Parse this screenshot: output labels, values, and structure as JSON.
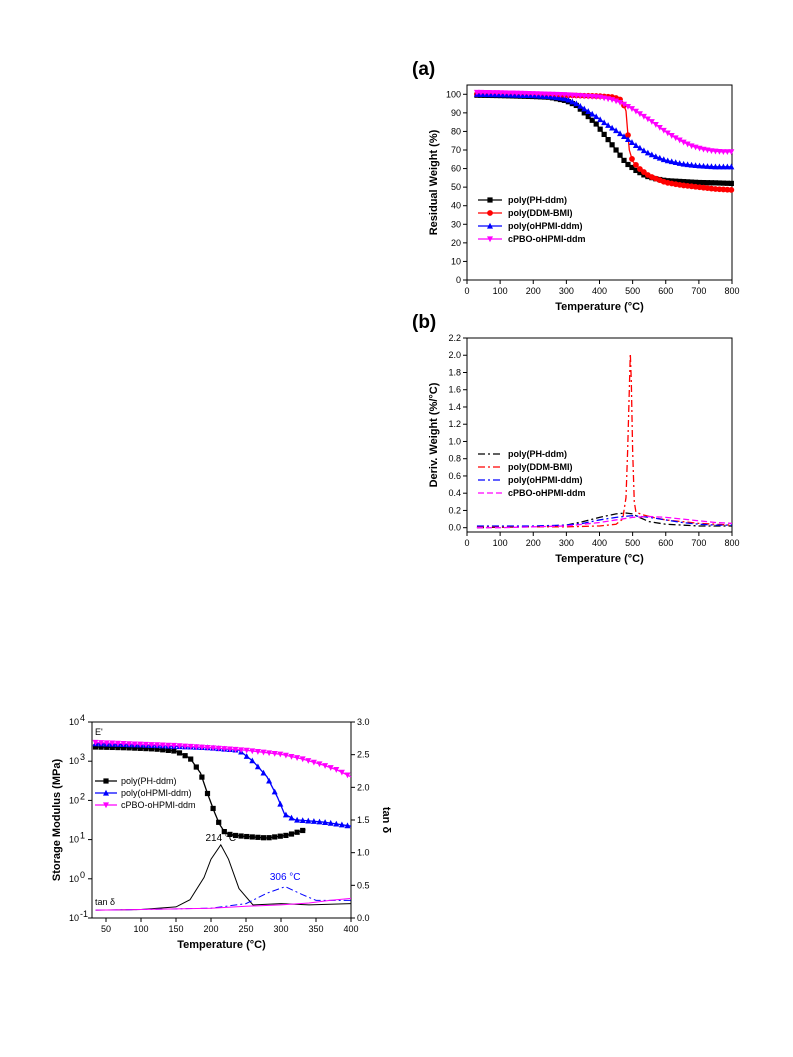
{
  "chart_data": [
    {
      "panel_label": "(a)",
      "type": "line",
      "xlabel": "Temperature (°C)",
      "ylabel": "Residual Weight (%)",
      "xlim": [
        0,
        800
      ],
      "ylim": [
        0,
        105
      ],
      "xticks": [
        "0",
        "100",
        "200",
        "300",
        "400",
        "500",
        "600",
        "700",
        "800"
      ],
      "yticks": [
        "0",
        "10",
        "20",
        "30",
        "40",
        "50",
        "60",
        "70",
        "80",
        "90",
        "100"
      ],
      "legend_position": "center-left",
      "series": [
        {
          "name": "poly(PH-ddm)",
          "color": "#000000",
          "marker": "square",
          "x": [
            30,
            100,
            200,
            250,
            300,
            330,
            360,
            390,
            420,
            450,
            480,
            510,
            540,
            570,
            600,
            650,
            700,
            750,
            800
          ],
          "y": [
            99.5,
            99.3,
            98.8,
            98.4,
            96.5,
            94,
            89,
            84,
            77,
            70,
            63,
            59,
            56,
            54.5,
            53.5,
            53,
            52.5,
            52.3,
            52
          ]
        },
        {
          "name": "poly(DDM-BMI)",
          "color": "#ff0000",
          "marker": "circle",
          "x": [
            30,
            100,
            200,
            300,
            400,
            440,
            460,
            470,
            480,
            485,
            490,
            500,
            520,
            550,
            600,
            650,
            700,
            750,
            800
          ],
          "y": [
            100,
            100,
            99.8,
            99.5,
            99,
            98.5,
            97.5,
            96,
            91,
            80,
            70,
            64,
            60,
            56,
            52.5,
            51,
            50,
            49,
            48.5
          ]
        },
        {
          "name": "poly(oHPMI-ddm)",
          "color": "#0000ff",
          "marker": "triangle-up",
          "x": [
            30,
            100,
            200,
            250,
            300,
            330,
            360,
            390,
            420,
            450,
            480,
            510,
            540,
            570,
            600,
            650,
            700,
            750,
            800
          ],
          "y": [
            100,
            99.8,
            99.3,
            98.8,
            97.5,
            95,
            91.5,
            88,
            84,
            80.5,
            76.5,
            72.5,
            69,
            66.5,
            64.5,
            62.5,
            61.5,
            61,
            61
          ]
        },
        {
          "name": "cPBO-oHPMI-ddm",
          "color": "#ff00ff",
          "marker": "triangle-down",
          "x": [
            30,
            100,
            200,
            300,
            400,
            440,
            470,
            500,
            530,
            560,
            590,
            620,
            650,
            680,
            710,
            740,
            770,
            800
          ],
          "y": [
            101,
            100.8,
            100.3,
            99.7,
            98.5,
            97,
            95,
            92,
            88.5,
            85,
            81,
            77.5,
            74.5,
            72,
            70.5,
            69.5,
            69,
            69
          ]
        }
      ]
    },
    {
      "panel_label": "(b)",
      "type": "line",
      "xlabel": "Temperature (°C)",
      "ylabel": "Deriv. Weight (%/°C)",
      "xlim": [
        0,
        800
      ],
      "ylim": [
        -0.05,
        2.2
      ],
      "xticks": [
        "0",
        "100",
        "200",
        "300",
        "400",
        "500",
        "600",
        "700",
        "800"
      ],
      "yticks": [
        "0.0",
        "0.2",
        "0.4",
        "0.6",
        "0.8",
        "1.0",
        "1.2",
        "1.4",
        "1.6",
        "1.8",
        "2.0",
        "2.2"
      ],
      "legend_position": "center-left",
      "series": [
        {
          "name": "poly(PH-ddm)",
          "color": "#000000",
          "dash": "dash-dot",
          "x": [
            30,
            100,
            200,
            300,
            350,
            400,
            450,
            480,
            500,
            520,
            550,
            600,
            650,
            700,
            750,
            800
          ],
          "y": [
            0.0,
            0.005,
            0.01,
            0.03,
            0.07,
            0.12,
            0.16,
            0.17,
            0.16,
            0.12,
            0.07,
            0.04,
            0.03,
            0.02,
            0.02,
            0.02
          ]
        },
        {
          "name": "poly(DDM-BMI)",
          "color": "#ff0000",
          "dash": "dash-dot",
          "x": [
            30,
            100,
            200,
            300,
            400,
            450,
            470,
            480,
            485,
            490,
            493,
            496,
            500,
            505,
            510,
            530,
            560,
            600,
            700,
            800
          ],
          "y": [
            0.01,
            0.01,
            0.01,
            0.01,
            0.02,
            0.04,
            0.1,
            0.35,
            0.9,
            1.6,
            2.02,
            1.7,
            0.9,
            0.3,
            0.18,
            0.15,
            0.12,
            0.09,
            0.05,
            0.03
          ]
        },
        {
          "name": "poly(oHPMI-ddm)",
          "color": "#0000ff",
          "dash": "dash-dot",
          "x": [
            30,
            100,
            200,
            300,
            350,
            400,
            450,
            500,
            550,
            600,
            650,
            700,
            750,
            800
          ],
          "y": [
            0.02,
            0.02,
            0.02,
            0.03,
            0.05,
            0.09,
            0.12,
            0.14,
            0.12,
            0.09,
            0.06,
            0.04,
            0.03,
            0.03
          ]
        },
        {
          "name": "cPBO-oHPMI-ddm",
          "color": "#ff00ff",
          "dash": "dashed",
          "x": [
            30,
            100,
            200,
            300,
            400,
            450,
            500,
            550,
            600,
            650,
            700,
            750,
            800
          ],
          "y": [
            0.0,
            0.0,
            0.01,
            0.02,
            0.06,
            0.09,
            0.12,
            0.13,
            0.12,
            0.1,
            0.08,
            0.06,
            0.05
          ]
        }
      ]
    },
    {
      "panel_label": "",
      "type": "line",
      "xlabel": "Temperature (°C)",
      "ylabel": "Storage Modulus (MPa)",
      "y2label": "tan δ",
      "xlim": [
        30,
        400
      ],
      "ylim_log": [
        0.1,
        10000
      ],
      "y2lim": [
        0,
        3.0
      ],
      "y_scale": "log",
      "xticks": [
        "50",
        "100",
        "150",
        "200",
        "250",
        "300",
        "350",
        "400"
      ],
      "ytick_mantissa": "10",
      "ytick_exponents": [
        "-1",
        "0",
        "1",
        "2",
        "3",
        "4"
      ],
      "y2ticks": [
        "0.0",
        "0.5",
        "1.0",
        "1.5",
        "2.0",
        "2.5",
        "3.0"
      ],
      "label_E": "E'",
      "label_tan": "tan δ",
      "peak_labels": [
        {
          "text": "214 °C",
          "color": "#000000",
          "x": 214,
          "y2": 1.12
        },
        {
          "text": "306 °C",
          "color": "#0000ff",
          "x": 306,
          "y2": 0.52
        }
      ],
      "legend_position": "upper-left",
      "series": [
        {
          "name": "poly(PH-ddm)",
          "color": "#000000",
          "marker": "square",
          "axis": "left",
          "x": [
            35,
            80,
            120,
            150,
            170,
            185,
            195,
            205,
            212,
            220,
            230,
            250,
            280,
            310,
            335
          ],
          "y": [
            2300,
            2200,
            2050,
            1800,
            1200,
            500,
            150,
            50,
            25,
            15,
            13,
            12,
            11,
            13,
            18
          ]
        },
        {
          "name": "poly(oHPMI-ddm)",
          "color": "#0000ff",
          "marker": "triangle-up",
          "axis": "left",
          "x": [
            35,
            100,
            200,
            240,
            260,
            280,
            295,
            305,
            320,
            340,
            360,
            380,
            400
          ],
          "y": [
            2800,
            2600,
            2200,
            1900,
            1000,
            400,
            120,
            45,
            32,
            30,
            28,
            25,
            22
          ]
        },
        {
          "name": "cPBO-oHPMI-ddm",
          "color": "#ff00ff",
          "marker": "triangle-down",
          "axis": "left",
          "x": [
            35,
            100,
            150,
            200,
            250,
            300,
            330,
            360,
            380,
            400
          ],
          "y": [
            3000,
            2700,
            2500,
            2200,
            1900,
            1500,
            1150,
            800,
            600,
            400
          ]
        },
        {
          "name": "",
          "color": "#000000",
          "dash": "solid",
          "axis": "right",
          "x": [
            35,
            100,
            150,
            170,
            190,
            200,
            214,
            225,
            240,
            260,
            300,
            340,
            400
          ],
          "y": [
            0.12,
            0.13,
            0.17,
            0.28,
            0.62,
            0.9,
            1.12,
            0.9,
            0.45,
            0.2,
            0.22,
            0.2,
            0.22
          ]
        },
        {
          "name": "",
          "color": "#0000ff",
          "dash": "dash-dot",
          "axis": "right",
          "x": [
            35,
            100,
            200,
            250,
            280,
            306,
            330,
            350,
            380,
            400
          ],
          "y": [
            0.12,
            0.13,
            0.15,
            0.22,
            0.38,
            0.48,
            0.36,
            0.27,
            0.27,
            0.27
          ]
        },
        {
          "name": "",
          "color": "#ff00ff",
          "dash": "solid",
          "axis": "right",
          "x": [
            35,
            100,
            200,
            250,
            300,
            340,
            370,
            400
          ],
          "y": [
            0.12,
            0.13,
            0.15,
            0.18,
            0.2,
            0.23,
            0.27,
            0.3
          ]
        }
      ]
    }
  ]
}
